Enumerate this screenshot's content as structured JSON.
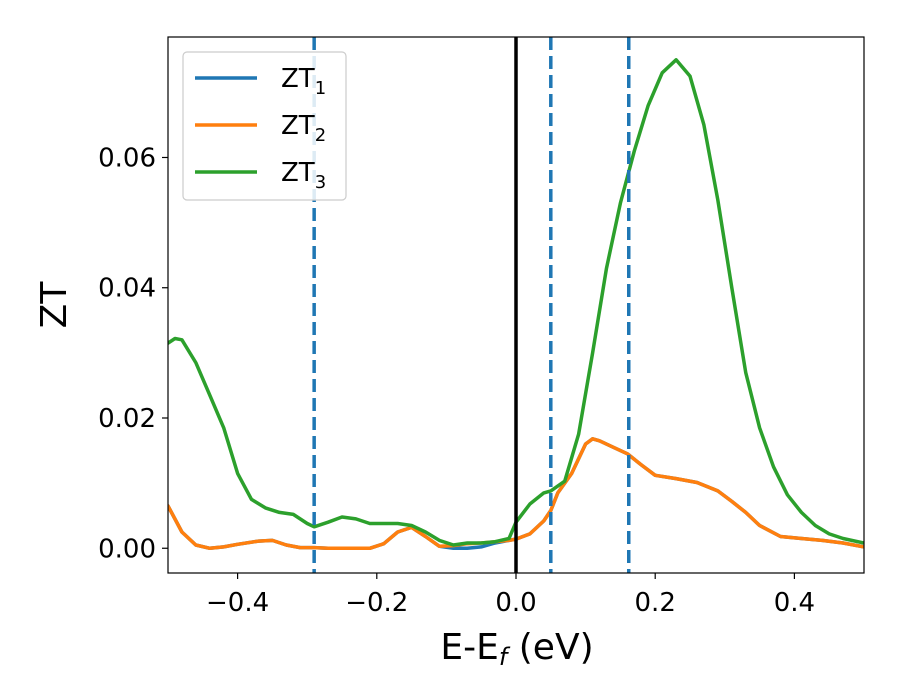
{
  "chart_data": {
    "type": "line",
    "xlabel": {
      "main": "E-E",
      "sub": "f",
      "suffix": " (eV)"
    },
    "ylabel": "ZT",
    "xlim": [
      -0.5,
      0.5
    ],
    "ylim": [
      -0.0038,
      0.0785
    ],
    "xticks": [
      -0.4,
      -0.2,
      0.0,
      0.2,
      0.4
    ],
    "xtick_labels": [
      "−0.4",
      "−0.2",
      "0.0",
      "0.2",
      "0.4"
    ],
    "yticks": [
      0.0,
      0.02,
      0.04,
      0.06
    ],
    "ytick_labels": [
      "0.00",
      "0.02",
      "0.04",
      "0.06"
    ],
    "grid": false,
    "legend_position": "top-left",
    "vlines": [
      {
        "x": 0.0,
        "color": "#000000",
        "style": "solid"
      },
      {
        "x": -0.29,
        "color": "#1f77b4",
        "style": "dashed"
      },
      {
        "x": 0.05,
        "color": "#1f77b4",
        "style": "dashed"
      },
      {
        "x": 0.162,
        "color": "#1f77b4",
        "style": "dashed"
      }
    ],
    "series": [
      {
        "name": "ZT",
        "sub": "1",
        "color": "#1f77b4",
        "x": [
          -0.5,
          -0.48,
          -0.46,
          -0.44,
          -0.42,
          -0.4,
          -0.37,
          -0.35,
          -0.33,
          -0.31,
          -0.29,
          -0.27,
          -0.25,
          -0.23,
          -0.21,
          -0.19,
          -0.17,
          -0.15,
          -0.13,
          -0.11,
          -0.09,
          -0.07,
          -0.05,
          -0.03,
          -0.01,
          0.0,
          0.02,
          0.04,
          0.05,
          0.06,
          0.08,
          0.1,
          0.11,
          0.12,
          0.14,
          0.16,
          0.18,
          0.2,
          0.23,
          0.26,
          0.29,
          0.31,
          0.33,
          0.35,
          0.38,
          0.41,
          0.44,
          0.47,
          0.5
        ],
        "y": [
          0.0065,
          0.0025,
          0.0005,
          0.0,
          0.0002,
          0.0006,
          0.0011,
          0.0012,
          0.0005,
          0.0001,
          0.0001,
          0.0,
          0.0,
          0.0,
          0.0,
          0.0007,
          0.0025,
          0.0032,
          0.0018,
          0.0003,
          0.0,
          0.0,
          0.0002,
          0.0008,
          0.0012,
          0.0014,
          0.0022,
          0.0042,
          0.0058,
          0.0085,
          0.0115,
          0.016,
          0.0168,
          0.0165,
          0.0155,
          0.0145,
          0.0128,
          0.0112,
          0.0107,
          0.0101,
          0.0088,
          0.0072,
          0.0055,
          0.0035,
          0.0018,
          0.0015,
          0.0012,
          0.0008,
          0.0002
        ]
      },
      {
        "name": "ZT",
        "sub": "2",
        "color": "#ff7f0e",
        "x": [
          -0.5,
          -0.48,
          -0.46,
          -0.44,
          -0.42,
          -0.4,
          -0.37,
          -0.35,
          -0.33,
          -0.31,
          -0.29,
          -0.27,
          -0.25,
          -0.23,
          -0.21,
          -0.19,
          -0.17,
          -0.15,
          -0.13,
          -0.11,
          -0.09,
          -0.07,
          -0.05,
          -0.03,
          -0.01,
          0.0,
          0.02,
          0.04,
          0.05,
          0.06,
          0.08,
          0.1,
          0.11,
          0.12,
          0.14,
          0.16,
          0.18,
          0.2,
          0.23,
          0.26,
          0.29,
          0.31,
          0.33,
          0.35,
          0.38,
          0.41,
          0.44,
          0.47,
          0.5
        ],
        "y": [
          0.0065,
          0.0025,
          0.0005,
          0.0,
          0.0002,
          0.0006,
          0.0011,
          0.0012,
          0.0005,
          0.0001,
          0.0001,
          0.0,
          0.0,
          0.0,
          0.0,
          0.0007,
          0.0025,
          0.0032,
          0.0018,
          0.0003,
          0.0004,
          0.0007,
          0.0008,
          0.001,
          0.0012,
          0.0014,
          0.0022,
          0.0042,
          0.0058,
          0.0085,
          0.0115,
          0.016,
          0.0168,
          0.0165,
          0.0155,
          0.0145,
          0.0128,
          0.0112,
          0.0107,
          0.0101,
          0.0088,
          0.0072,
          0.0055,
          0.0035,
          0.0018,
          0.0015,
          0.0012,
          0.0008,
          0.0002
        ]
      },
      {
        "name": "ZT",
        "sub": "3",
        "color": "#2ca02c",
        "x": [
          -0.5,
          -0.49,
          -0.48,
          -0.46,
          -0.44,
          -0.42,
          -0.4,
          -0.38,
          -0.36,
          -0.34,
          -0.32,
          -0.3,
          -0.29,
          -0.27,
          -0.25,
          -0.23,
          -0.21,
          -0.19,
          -0.17,
          -0.15,
          -0.13,
          -0.11,
          -0.09,
          -0.07,
          -0.05,
          -0.03,
          -0.01,
          0.0,
          0.02,
          0.04,
          0.05,
          0.07,
          0.09,
          0.11,
          0.13,
          0.15,
          0.17,
          0.19,
          0.21,
          0.23,
          0.25,
          0.27,
          0.29,
          0.31,
          0.33,
          0.35,
          0.37,
          0.39,
          0.41,
          0.43,
          0.45,
          0.47,
          0.5
        ],
        "y": [
          0.0315,
          0.0322,
          0.032,
          0.0285,
          0.0235,
          0.0185,
          0.0115,
          0.0075,
          0.0062,
          0.0055,
          0.0052,
          0.0038,
          0.0033,
          0.004,
          0.0048,
          0.0045,
          0.0038,
          0.0038,
          0.0038,
          0.0035,
          0.0025,
          0.0012,
          0.0005,
          0.0008,
          0.0008,
          0.001,
          0.0015,
          0.004,
          0.0068,
          0.0085,
          0.0088,
          0.0103,
          0.0175,
          0.03,
          0.043,
          0.053,
          0.061,
          0.068,
          0.073,
          0.075,
          0.0725,
          0.065,
          0.0535,
          0.04,
          0.027,
          0.0185,
          0.0125,
          0.0082,
          0.0055,
          0.0035,
          0.0022,
          0.0015,
          0.0008
        ]
      }
    ]
  }
}
